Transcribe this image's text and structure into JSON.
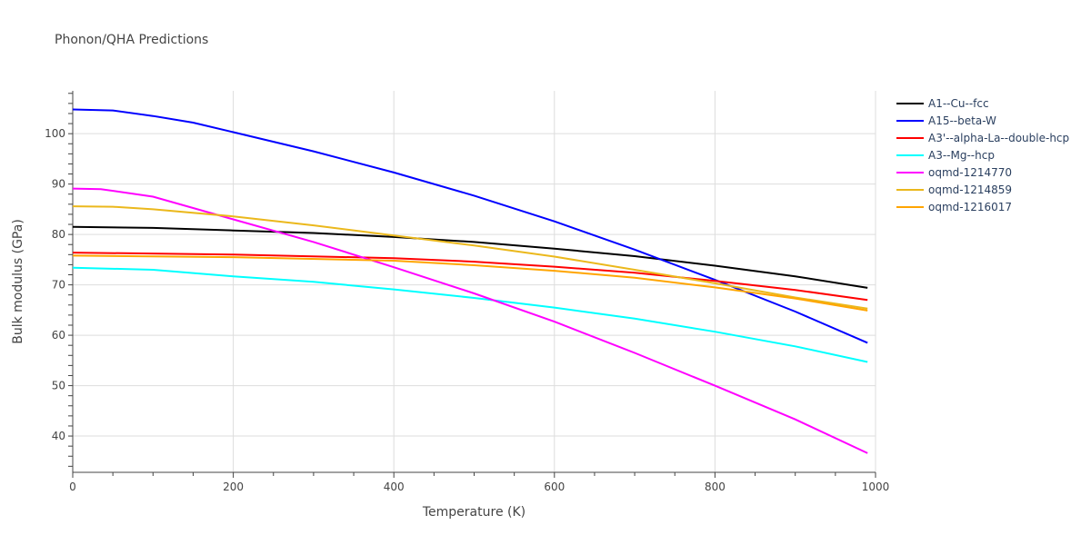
{
  "chart_data": {
    "type": "line",
    "title": "Phonon/QHA Predictions",
    "xlabel": "Temperature (K)",
    "ylabel": "Bulk modulus (GPa)",
    "xlim": [
      0,
      1000
    ],
    "ylim": [
      32.8,
      108.5
    ],
    "xticks": [
      0,
      200,
      400,
      600,
      800,
      1000
    ],
    "yticks": [
      40,
      50,
      60,
      70,
      80,
      90,
      100
    ],
    "grid": true,
    "legend_position": "top-right",
    "series": [
      {
        "name": "A1--Cu--fcc",
        "color": "#000000",
        "x": [
          0,
          100,
          200,
          300,
          400,
          500,
          600,
          700,
          800,
          900,
          990
        ],
        "y": [
          81.5,
          81.3,
          80.8,
          80.3,
          79.5,
          78.5,
          77.2,
          75.7,
          73.8,
          71.7,
          69.4
        ]
      },
      {
        "name": "A15--beta-W",
        "color": "#0000ff",
        "x": [
          0,
          50,
          100,
          150,
          200,
          300,
          400,
          500,
          600,
          700,
          800,
          900,
          990
        ],
        "y": [
          104.8,
          104.6,
          103.5,
          102.2,
          100.3,
          96.5,
          92.3,
          87.7,
          82.6,
          77.0,
          71.0,
          64.7,
          58.5
        ]
      },
      {
        "name": "A3'--alpha-La--double-hcp",
        "color": "#ff0000",
        "x": [
          0,
          200,
          400,
          500,
          600,
          700,
          800,
          900,
          990
        ],
        "y": [
          76.4,
          76.0,
          75.3,
          74.6,
          73.6,
          72.4,
          70.8,
          69.0,
          67.0
        ]
      },
      {
        "name": "A3--Mg--hcp",
        "color": "#00ffff",
        "x": [
          0,
          100,
          200,
          300,
          400,
          500,
          600,
          700,
          800,
          900,
          990
        ],
        "y": [
          73.4,
          73.0,
          71.7,
          70.6,
          69.1,
          67.4,
          65.5,
          63.3,
          60.7,
          57.8,
          54.7
        ]
      },
      {
        "name": "oqmd-1214770",
        "color": "#ff00ff",
        "x": [
          0,
          35,
          100,
          200,
          300,
          400,
          500,
          600,
          700,
          800,
          900,
          990
        ],
        "y": [
          89.1,
          89.0,
          87.5,
          83.0,
          78.5,
          73.5,
          68.3,
          62.7,
          56.5,
          50.0,
          43.3,
          36.6
        ]
      },
      {
        "name": "oqmd-1214859",
        "color": "#ebb81c",
        "x": [
          0,
          50,
          100,
          200,
          300,
          400,
          500,
          600,
          700,
          800,
          900,
          990
        ],
        "y": [
          85.6,
          85.5,
          85.0,
          83.6,
          81.8,
          79.8,
          77.8,
          75.6,
          73.0,
          70.3,
          67.5,
          65.3
        ]
      },
      {
        "name": "oqmd-1216017",
        "color": "#ffa500",
        "x": [
          0,
          200,
          400,
          500,
          600,
          700,
          800,
          900,
          990
        ],
        "y": [
          75.8,
          75.5,
          74.8,
          73.9,
          72.8,
          71.4,
          69.5,
          67.3,
          64.9
        ]
      }
    ]
  }
}
